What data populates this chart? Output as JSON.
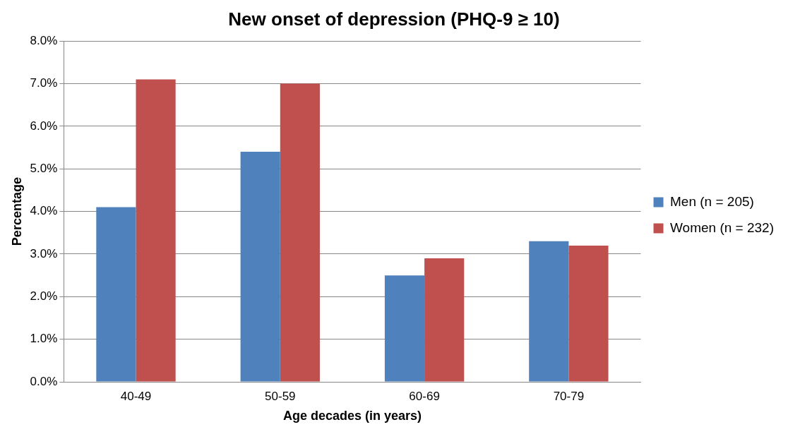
{
  "chart_data": {
    "type": "bar",
    "title": "New onset of depression (PHQ-9 ≥ 10)",
    "xlabel": "Age decades (in years)",
    "ylabel": "Percentage",
    "categories": [
      "40-49",
      "50-59",
      "60-69",
      "70-79"
    ],
    "series": [
      {
        "name": "Men (n = 205)",
        "color": "#4f81bd",
        "values": [
          4.1,
          5.4,
          2.5,
          3.3
        ]
      },
      {
        "name": "Women (n = 232)",
        "color": "#c0504d",
        "values": [
          7.1,
          7.0,
          2.9,
          3.2
        ]
      }
    ],
    "ylim": [
      0,
      8
    ],
    "yticks": [
      {
        "value": 0,
        "label": "0.0%"
      },
      {
        "value": 1,
        "label": "1.0%"
      },
      {
        "value": 2,
        "label": "2.0%"
      },
      {
        "value": 3,
        "label": "3.0%"
      },
      {
        "value": 4,
        "label": "4.0%"
      },
      {
        "value": 5,
        "label": "5.0%"
      },
      {
        "value": 6,
        "label": "6.0%"
      },
      {
        "value": 7,
        "label": "7.0%"
      },
      {
        "value": 8,
        "label": "8.0%"
      }
    ],
    "grid": "y",
    "legend": "right"
  }
}
